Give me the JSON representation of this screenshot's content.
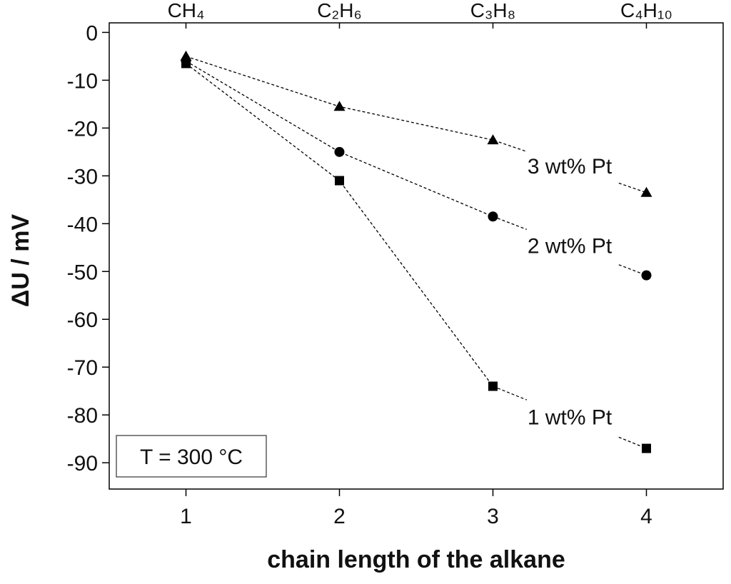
{
  "chart_data": {
    "type": "line",
    "xlabel": "chain length of the alkane",
    "ylabel": "ΔU / mV",
    "x": [
      1,
      2,
      3,
      4
    ],
    "xlim": [
      0.5,
      4.5
    ],
    "xticks": [
      1,
      2,
      3,
      4
    ],
    "x2ticks": [
      {
        "value": 1,
        "label": "CH₄"
      },
      {
        "value": 2,
        "label": "C₂H₆"
      },
      {
        "value": 3,
        "label": "C₃H₈"
      },
      {
        "value": 4,
        "label": "C₄H₁₀"
      }
    ],
    "ylim": [
      -95.5,
      2
    ],
    "yticks": [
      0,
      -10,
      -20,
      -30,
      -40,
      -50,
      -60,
      -70,
      -80,
      -90
    ],
    "annotation": "T = 300 °C",
    "series": [
      {
        "name": "3 wt% Pt",
        "color": "#000000",
        "marker": "triangle",
        "values": [
          -5,
          -15.5,
          -22.5,
          -33.5
        ]
      },
      {
        "name": "2 wt% Pt",
        "color": "#000000",
        "marker": "circle",
        "values": [
          -6,
          -25,
          -38.5,
          -50.8
        ]
      },
      {
        "name": "1 wt% Pt",
        "color": "#000000",
        "marker": "square",
        "values": [
          -6.5,
          -31,
          -74,
          -87
        ]
      }
    ]
  }
}
